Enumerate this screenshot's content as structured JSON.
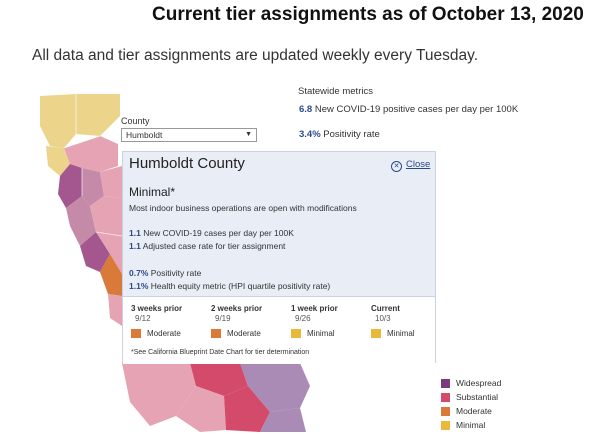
{
  "header": {
    "title": "Current tier assignments as of October 13, 2020",
    "subtitle": "All data and tier assignments are updated weekly every Tuesday."
  },
  "statewide": {
    "heading": "Statewide metrics",
    "cases_value": "6.8",
    "cases_label": "New COVID-19 positive cases per day per 100K",
    "positivity_value": "3.4%",
    "positivity_label": "Positivity rate"
  },
  "county_select": {
    "label": "County",
    "value": "Humboldt"
  },
  "popup": {
    "title": "Humboldt County",
    "close_label": "Close",
    "tier": "Minimal*",
    "tier_desc": "Most indoor business operations are open with modifications",
    "cases_value": "1.1",
    "cases_label": "New COVID-19 cases per day per 100K",
    "adjusted_value": "1.1",
    "adjusted_label": "Adjusted case rate for tier assignment",
    "positivity_value": "0.7%",
    "positivity_label": "Positivity rate",
    "equity_value": "1.1%",
    "equity_label": "Health equity metric (HPI quartile positivity rate)",
    "history": [
      {
        "week": "3 weeks prior",
        "date": "9/12",
        "tier": "Moderate",
        "color": "#d9793a"
      },
      {
        "week": "2 weeks prior",
        "date": "9/19",
        "tier": "Moderate",
        "color": "#d9793a"
      },
      {
        "week": "1 week prior",
        "date": "9/26",
        "tier": "Minimal",
        "color": "#e8b93a"
      },
      {
        "week": "Current",
        "date": "10/3",
        "tier": "Minimal",
        "color": "#e8b93a"
      }
    ],
    "note": "*See California Blueprint Date Chart for tier determination"
  },
  "legend": [
    {
      "label": "Widespread",
      "color": "#7b3a7d"
    },
    {
      "label": "Substantial",
      "color": "#d44a6b"
    },
    {
      "label": "Moderate",
      "color": "#d9793a"
    },
    {
      "label": "Minimal",
      "color": "#e8b93a"
    }
  ]
}
